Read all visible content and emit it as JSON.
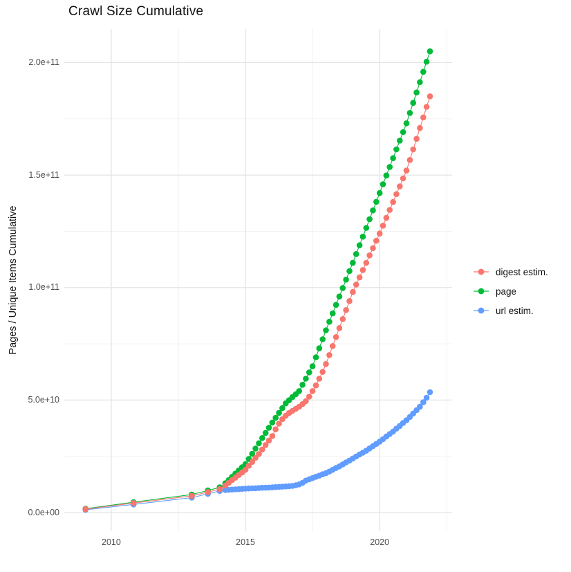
{
  "title": "Crawl Size Cumulative",
  "chart_data": {
    "type": "scatter",
    "title": "Crawl Size Cumulative",
    "xlabel": "",
    "ylabel": "Pages / Unique Items Cumulative",
    "values_unit": "billions (1e9 items)",
    "xlim": [
      2008.25,
      2022.7
    ],
    "ylim": [
      -8.3,
      214.9
    ],
    "grid": {
      "major_color": "#E4E4E4",
      "minor_color": "#F1F1F1",
      "background": "#FFFFFF"
    },
    "x_ticks": [
      {
        "value": 2010,
        "label": "2010"
      },
      {
        "value": 2015,
        "label": "2015"
      },
      {
        "value": 2020,
        "label": "2020"
      }
    ],
    "x_minor": [
      2012.5,
      2017.5,
      2022.5
    ],
    "y_ticks": [
      {
        "value": 0,
        "label": "0.0e+00"
      },
      {
        "value": 50,
        "label": "5.0e+10"
      },
      {
        "value": 100,
        "label": "1.0e+11"
      },
      {
        "value": 150,
        "label": "1.5e+11"
      },
      {
        "value": 200,
        "label": "2.0e+11"
      }
    ],
    "y_minor": [
      25,
      75,
      125,
      175
    ],
    "legend_position": "right",
    "draw_order": [
      1,
      2,
      0
    ],
    "marker_radius": 4.3,
    "series": [
      {
        "name": "digest estim.",
        "color": "#F8766D",
        "points": [
          [
            2009.04,
            1.5
          ],
          [
            2010.83,
            4.2
          ],
          [
            2013.0,
            7.4
          ],
          [
            2013.6,
            9.1
          ],
          [
            2014.04,
            10.4
          ],
          [
            2014.25,
            12.0
          ],
          [
            2014.375,
            13.2
          ],
          [
            2014.5,
            14.4
          ],
          [
            2014.625,
            15.5
          ],
          [
            2014.75,
            16.7
          ],
          [
            2014.875,
            17.8
          ],
          [
            2015.0,
            19.0
          ],
          [
            2015.125,
            20.8
          ],
          [
            2015.25,
            22.5
          ],
          [
            2015.375,
            24.3
          ],
          [
            2015.5,
            26.0
          ],
          [
            2015.625,
            28.0
          ],
          [
            2015.75,
            30.0
          ],
          [
            2015.875,
            32.0
          ],
          [
            2016.0,
            34.0
          ],
          [
            2016.125,
            37.0
          ],
          [
            2016.25,
            39.5
          ],
          [
            2016.375,
            41.5
          ],
          [
            2016.5,
            43.0
          ],
          [
            2016.625,
            44.2
          ],
          [
            2016.75,
            45.2
          ],
          [
            2016.875,
            46.1
          ],
          [
            2017.0,
            47.0
          ],
          [
            2017.125,
            48.2
          ],
          [
            2017.25,
            49.5
          ],
          [
            2017.375,
            51.5
          ],
          [
            2017.5,
            54.0
          ],
          [
            2017.625,
            56.5
          ],
          [
            2017.75,
            59.5
          ],
          [
            2017.875,
            62.5
          ],
          [
            2018.0,
            66.0
          ],
          [
            2018.125,
            70.0
          ],
          [
            2018.25,
            74.0
          ],
          [
            2018.375,
            78.0
          ],
          [
            2018.5,
            82.0
          ],
          [
            2018.625,
            86.0
          ],
          [
            2018.75,
            90.0
          ],
          [
            2018.875,
            94.0
          ],
          [
            2019.0,
            98.0
          ],
          [
            2019.125,
            101.3
          ],
          [
            2019.25,
            104.5
          ],
          [
            2019.375,
            107.8
          ],
          [
            2019.5,
            111.0
          ],
          [
            2019.625,
            114.3
          ],
          [
            2019.75,
            117.5
          ],
          [
            2019.875,
            120.8
          ],
          [
            2020.0,
            124.0
          ],
          [
            2020.125,
            127.5
          ],
          [
            2020.25,
            131.0
          ],
          [
            2020.375,
            134.5
          ],
          [
            2020.5,
            138.0
          ],
          [
            2020.625,
            141.5
          ],
          [
            2020.75,
            145.0
          ],
          [
            2020.875,
            148.5
          ],
          [
            2021.0,
            152.0
          ],
          [
            2021.125,
            156.7
          ],
          [
            2021.25,
            161.4
          ],
          [
            2021.375,
            166.1
          ],
          [
            2021.5,
            170.9
          ],
          [
            2021.625,
            175.6
          ],
          [
            2021.75,
            180.3
          ],
          [
            2021.875,
            185.0
          ]
        ]
      },
      {
        "name": "page",
        "color": "#00BA38",
        "points": [
          [
            2009.04,
            1.7
          ],
          [
            2010.83,
            4.6
          ],
          [
            2013.0,
            8.0
          ],
          [
            2013.6,
            9.8
          ],
          [
            2014.04,
            11.2
          ],
          [
            2014.25,
            13.0
          ],
          [
            2014.375,
            14.4
          ],
          [
            2014.5,
            15.8
          ],
          [
            2014.625,
            17.3
          ],
          [
            2014.75,
            18.7
          ],
          [
            2014.875,
            20.1
          ],
          [
            2015.0,
            21.5
          ],
          [
            2015.125,
            23.8
          ],
          [
            2015.25,
            26.1
          ],
          [
            2015.375,
            28.4
          ],
          [
            2015.5,
            30.8
          ],
          [
            2015.625,
            33.1
          ],
          [
            2015.75,
            35.4
          ],
          [
            2015.875,
            37.7
          ],
          [
            2016.0,
            40.0
          ],
          [
            2016.125,
            42.1
          ],
          [
            2016.25,
            44.3
          ],
          [
            2016.375,
            46.4
          ],
          [
            2016.5,
            48.5
          ],
          [
            2016.625,
            49.9
          ],
          [
            2016.75,
            51.3
          ],
          [
            2016.875,
            52.6
          ],
          [
            2017.0,
            54.0
          ],
          [
            2017.125,
            56.8
          ],
          [
            2017.25,
            59.5
          ],
          [
            2017.375,
            62.3
          ],
          [
            2017.5,
            65.0
          ],
          [
            2017.625,
            69.0
          ],
          [
            2017.75,
            73.0
          ],
          [
            2017.875,
            77.0
          ],
          [
            2018.0,
            81.0
          ],
          [
            2018.125,
            84.8
          ],
          [
            2018.25,
            88.5
          ],
          [
            2018.375,
            92.3
          ],
          [
            2018.5,
            96.0
          ],
          [
            2018.625,
            99.8
          ],
          [
            2018.75,
            103.5
          ],
          [
            2018.875,
            107.3
          ],
          [
            2019.0,
            111.0
          ],
          [
            2019.125,
            114.9
          ],
          [
            2019.25,
            118.8
          ],
          [
            2019.375,
            122.6
          ],
          [
            2019.5,
            126.5
          ],
          [
            2019.625,
            130.4
          ],
          [
            2019.75,
            134.3
          ],
          [
            2019.875,
            138.1
          ],
          [
            2020.0,
            142.0
          ],
          [
            2020.125,
            145.9
          ],
          [
            2020.25,
            149.8
          ],
          [
            2020.375,
            153.6
          ],
          [
            2020.5,
            157.5
          ],
          [
            2020.625,
            161.4
          ],
          [
            2020.75,
            165.3
          ],
          [
            2020.875,
            169.1
          ],
          [
            2021.0,
            173.0
          ],
          [
            2021.125,
            177.6
          ],
          [
            2021.25,
            182.1
          ],
          [
            2021.375,
            186.7
          ],
          [
            2021.5,
            191.3
          ],
          [
            2021.625,
            195.9
          ],
          [
            2021.75,
            200.4
          ],
          [
            2021.875,
            205.0
          ]
        ]
      },
      {
        "name": "url estim.",
        "color": "#619CFF",
        "points": [
          [
            2009.04,
            1.2
          ],
          [
            2010.83,
            3.6
          ],
          [
            2013.0,
            6.6
          ],
          [
            2013.6,
            8.3
          ],
          [
            2014.04,
            9.6
          ],
          [
            2014.25,
            10.0
          ],
          [
            2014.375,
            10.1
          ],
          [
            2014.5,
            10.2
          ],
          [
            2014.625,
            10.3
          ],
          [
            2014.75,
            10.4
          ],
          [
            2014.875,
            10.5
          ],
          [
            2015.0,
            10.6
          ],
          [
            2015.125,
            10.7
          ],
          [
            2015.25,
            10.75
          ],
          [
            2015.375,
            10.8
          ],
          [
            2015.5,
            10.9
          ],
          [
            2015.625,
            11.0
          ],
          [
            2015.75,
            11.05
          ],
          [
            2015.875,
            11.1
          ],
          [
            2016.0,
            11.2
          ],
          [
            2016.125,
            11.3
          ],
          [
            2016.25,
            11.4
          ],
          [
            2016.375,
            11.5
          ],
          [
            2016.5,
            11.6
          ],
          [
            2016.625,
            11.7
          ],
          [
            2016.75,
            11.85
          ],
          [
            2016.875,
            12.1
          ],
          [
            2017.0,
            12.5
          ],
          [
            2017.125,
            13.2
          ],
          [
            2017.25,
            14.2
          ],
          [
            2017.375,
            14.8
          ],
          [
            2017.5,
            15.3
          ],
          [
            2017.625,
            15.9
          ],
          [
            2017.75,
            16.4
          ],
          [
            2017.875,
            17.0
          ],
          [
            2018.0,
            17.5
          ],
          [
            2018.125,
            18.2
          ],
          [
            2018.25,
            19.0
          ],
          [
            2018.375,
            19.8
          ],
          [
            2018.5,
            20.5
          ],
          [
            2018.625,
            21.4
          ],
          [
            2018.75,
            22.3
          ],
          [
            2018.875,
            23.1
          ],
          [
            2019.0,
            24.0
          ],
          [
            2019.125,
            24.9
          ],
          [
            2019.25,
            25.8
          ],
          [
            2019.375,
            26.6
          ],
          [
            2019.5,
            27.5
          ],
          [
            2019.625,
            28.5
          ],
          [
            2019.75,
            29.5
          ],
          [
            2019.875,
            30.5
          ],
          [
            2020.0,
            31.5
          ],
          [
            2020.125,
            32.6
          ],
          [
            2020.25,
            33.8
          ],
          [
            2020.375,
            34.9
          ],
          [
            2020.5,
            36.0
          ],
          [
            2020.625,
            37.3
          ],
          [
            2020.75,
            38.5
          ],
          [
            2020.875,
            39.8
          ],
          [
            2021.0,
            41.0
          ],
          [
            2021.125,
            42.5
          ],
          [
            2021.25,
            44.0
          ],
          [
            2021.375,
            45.5
          ],
          [
            2021.5,
            47.0
          ],
          [
            2021.625,
            49.0
          ],
          [
            2021.75,
            51.0
          ],
          [
            2021.875,
            53.5
          ]
        ]
      }
    ]
  }
}
